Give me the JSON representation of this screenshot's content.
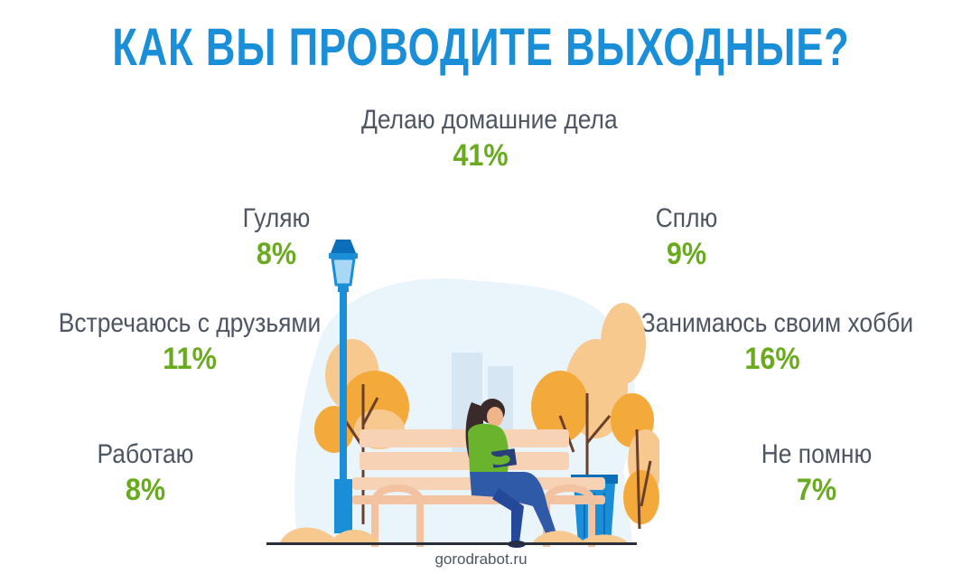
{
  "title": "КАК ВЫ ПРОВОДИТЕ ВЫХОДНЫЕ?",
  "footer": "gorodrabot.ru",
  "colors": {
    "title": "#1a8fd8",
    "label": "#4d5563",
    "value": "#6aaa1e"
  },
  "chart_data": {
    "type": "table",
    "title": "КАК ВЫ ПРОВОДИТЕ ВЫХОДНЫЕ?",
    "unit": "%",
    "categories": [
      "Делаю домашние дела",
      "Гуляю",
      "Сплю",
      "Встречаюсь с друзьями",
      "Занимаюсь своим хобби",
      "Работаю",
      "Не помню"
    ],
    "values": [
      41,
      8,
      9,
      11,
      16,
      8,
      7
    ],
    "value_labels": [
      "41%",
      "8%",
      "9%",
      "11%",
      "16%",
      "8%",
      "7%"
    ]
  }
}
